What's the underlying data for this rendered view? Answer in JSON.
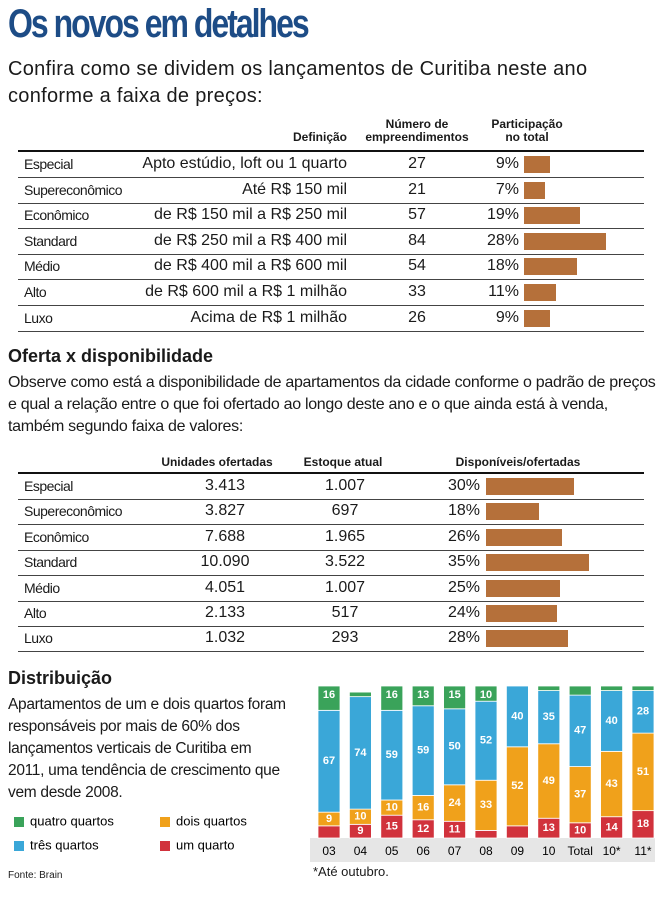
{
  "header": {
    "title": "Os novos em detalhes",
    "subtitle": "Confira como se dividem os lançamentos de Curitiba neste ano conforme a faixa de preços:"
  },
  "table1": {
    "headers": {
      "definition": [
        "Definição"
      ],
      "count": [
        "Número de",
        "empreendimentos"
      ],
      "share": [
        "Participação",
        "no total"
      ]
    },
    "bar_color": "#b5703a",
    "rows": [
      {
        "name": "Especial",
        "definition": "Apto estúdio, loft ou 1 quarto",
        "count": 27,
        "share": 9,
        "share_label": "9%"
      },
      {
        "name": "Supereconômico",
        "definition": "Até R$ 150 mil",
        "count": 21,
        "share": 7,
        "share_label": "7%"
      },
      {
        "name": "Econômico",
        "definition": "de R$ 150 mil a R$ 250 mil",
        "count": 57,
        "share": 19,
        "share_label": "19%"
      },
      {
        "name": "Standard",
        "definition": "de R$ 250 mil a R$ 400 mil",
        "count": 84,
        "share": 28,
        "share_label": "28%"
      },
      {
        "name": "Médio",
        "definition": "de R$ 400 mil a R$ 600 mil",
        "count": 54,
        "share": 18,
        "share_label": "18%"
      },
      {
        "name": "Alto",
        "definition": "de R$ 600 mil a R$ 1 milhão",
        "count": 33,
        "share": 11,
        "share_label": "11%"
      },
      {
        "name": "Luxo",
        "definition": "Acima de R$ 1 milhão",
        "count": 26,
        "share": 9,
        "share_label": "9%"
      }
    ]
  },
  "section2": {
    "title": "Oferta x disponibilidade",
    "text": "Observe como está a disponibilidade de apartamentos da cidade conforme o padrão de preços e qual a relação entre o que foi ofertado ao longo deste ano e o que ainda está à venda, também segundo faixa de valores:"
  },
  "table2": {
    "headers": {
      "offered": "Unidades ofertadas",
      "stock": "Estoque atual",
      "share": "Disponíveis/ofertadas"
    },
    "bar_color": "#b5703a",
    "rows": [
      {
        "name": "Especial",
        "offered": "3.413",
        "stock": "1.007",
        "share": 30,
        "share_label": "30%"
      },
      {
        "name": "Supereconômico",
        "offered": "3.827",
        "stock": "697",
        "share": 18,
        "share_label": "18%"
      },
      {
        "name": "Econômico",
        "offered": "7.688",
        "stock": "1.965",
        "share": 26,
        "share_label": "26%"
      },
      {
        "name": "Standard",
        "offered": "10.090",
        "stock": "3.522",
        "share": 35,
        "share_label": "35%"
      },
      {
        "name": "Médio",
        "offered": "4.051",
        "stock": "1.007",
        "share": 25,
        "share_label": "25%"
      },
      {
        "name": "Alto",
        "offered": "2.133",
        "stock": "517",
        "share": 24,
        "share_label": "24%"
      },
      {
        "name": "Luxo",
        "offered": "1.032",
        "stock": "293",
        "share": 28,
        "share_label": "28%"
      }
    ]
  },
  "section3": {
    "title": "Distribuição",
    "text": "Apartamentos de um e dois quartos foram responsáveis por mais de 60% dos lançamentos verticais de Curitiba em 2011, uma tendência de crescimento que vem desde 2008.",
    "source": "Fonte: Brain",
    "footnote": "*Até outubro."
  },
  "chart_data": {
    "type": "stacked-bar",
    "categories": [
      "03",
      "04",
      "05",
      "06",
      "07",
      "08",
      "09",
      "10",
      "Total",
      "10*",
      "11*"
    ],
    "series": [
      {
        "name": "um quarto",
        "color": "#d1323c",
        "values": [
          8,
          9,
          15,
          12,
          11,
          5,
          8,
          13,
          10,
          14,
          18
        ]
      },
      {
        "name": "dois quartos",
        "color": "#f0a11b",
        "values": [
          9,
          10,
          10,
          16,
          24,
          33,
          52,
          49,
          37,
          43,
          51
        ]
      },
      {
        "name": "três quartos",
        "color": "#3aa7d8",
        "values": [
          67,
          74,
          59,
          59,
          50,
          52,
          40,
          35,
          47,
          40,
          28
        ]
      },
      {
        "name": "quatro quartos",
        "color": "#3aa35a",
        "values": [
          16,
          3,
          16,
          13,
          15,
          10,
          0,
          3,
          6,
          3,
          3
        ]
      }
    ]
  }
}
